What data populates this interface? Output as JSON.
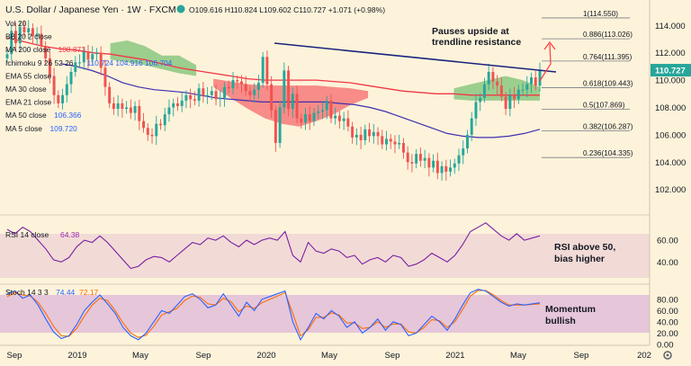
{
  "header": {
    "title": "U.S. Dollar / Japanese Yen · 1W · FXCM",
    "ohlc": "O109.616 H110.824 L109.602 C110.727 +1.071 (+0.98%)"
  },
  "legend": [
    {
      "label": "Vol 20",
      "value": "",
      "color": "#787b86"
    },
    {
      "label": "BB 20 2 close",
      "value": "",
      "color": "#787b86"
    },
    {
      "label": "MA 200 close",
      "value": "108.873",
      "color": "#f23645"
    },
    {
      "label": "Ichimoku 9 26 52 26",
      "value": "110.724 104.916 106.704",
      "color": "#2962ff"
    },
    {
      "label": "EMA 55 close",
      "value": "",
      "color": "#787b86"
    },
    {
      "label": "MA 30 close",
      "value": "",
      "color": "#787b86"
    },
    {
      "label": "EMA 21 close",
      "value": "",
      "color": "#787b86"
    },
    {
      "label": "MA 50 close",
      "value": "106.366",
      "color": "#2962ff"
    },
    {
      "label": "MA 5 close",
      "value": "109.720",
      "color": "#2962ff"
    }
  ],
  "annotations": {
    "trendline_note": [
      "Pauses upside at",
      "trendline resistance"
    ],
    "rsi_note": [
      "RSI above 50,",
      "bias higher"
    ],
    "stoch_note": [
      "Momentum",
      "bullish"
    ]
  },
  "fib_levels": [
    {
      "label": "1(114.550)",
      "value": 114.55
    },
    {
      "label": "0.886(113.026)",
      "value": 113.026
    },
    {
      "label": "0.764(111.395)",
      "value": 111.395
    },
    {
      "label": "0.618(109.443)",
      "value": 109.443
    },
    {
      "label": "0.5(107.869)",
      "value": 107.869
    },
    {
      "label": "0.382(106.287)",
      "value": 106.287
    },
    {
      "label": "0.236(104.335)",
      "value": 104.335
    }
  ],
  "price_badge": {
    "value": "110.727",
    "color": "#26a69a"
  },
  "panels": {
    "rsi": {
      "label": "RSI 14 close",
      "value": "64.38",
      "color": "#9c27b0"
    },
    "stoch": {
      "label": "Stoch 14 3 3",
      "k": "74.44",
      "d": "72.17",
      "k_color": "#2962ff",
      "d_color": "#ff6d00"
    }
  },
  "chart_data": {
    "type": "line",
    "title": "U.S. Dollar / Japanese Yen · 1W · FXCM",
    "x_labels": [
      "Sep",
      "2019",
      "May",
      "Sep",
      "2020",
      "May",
      "Sep",
      "2021",
      "May",
      "Sep",
      "202"
    ],
    "price_axis": [
      102.0,
      104.0,
      106.0,
      108.0,
      110.0,
      112.0,
      114.0
    ],
    "price_range": [
      100.2,
      115.6
    ],
    "rsi_axis": [
      40.0,
      60.0
    ],
    "rsi_range": [
      22,
      80
    ],
    "stoch_axis": [
      0.0,
      20.0,
      40.0,
      60.0,
      80.0
    ],
    "stoch_range": [
      -2,
      104
    ],
    "last_price": 110.727,
    "resistance_trendline": {
      "from": [
        "Jan 2020",
        112.3
      ],
      "to": [
        "Sep 2021",
        110.6
      ]
    },
    "price_close": [
      111.9,
      113.6,
      112.7,
      113.9,
      113.5,
      113.8,
      113.2,
      113.4,
      112.5,
      111.6,
      110.3,
      108.9,
      108.3,
      108.9,
      109.7,
      110.6,
      111.3,
      111.3,
      112.1,
      111.5,
      111.9,
      112.0,
      110.9,
      109.5,
      108.3,
      107.9,
      108.3,
      107.9,
      108.0,
      107.6,
      108.1,
      107.0,
      106.5,
      106.0,
      105.9,
      106.8,
      106.7,
      107.5,
      108.0,
      108.3,
      108.1,
      108.5,
      108.9,
      108.6,
      108.5,
      109.4,
      108.9,
      108.9,
      109.2,
      108.6,
      108.7,
      109.5,
      109.4,
      110.0,
      109.9,
      109.7,
      109.2,
      108.9,
      109.3,
      109.8,
      111.7,
      109.7,
      107.8,
      105.4,
      108.0,
      110.7,
      107.9,
      109.0,
      107.2,
      106.9,
      107.5,
      107.0,
      107.6,
      107.7,
      107.8,
      108.5,
      107.2,
      107.4,
      107.0,
      107.2,
      106.6,
      105.8,
      106.0,
      105.6,
      106.4,
      105.9,
      106.2,
      105.9,
      105.3,
      105.7,
      105.5,
      105.3,
      105.4,
      104.7,
      104.0,
      103.9,
      104.6,
      104.1,
      104.3,
      103.6,
      104.1,
      103.2,
      103.7,
      103.3,
      103.6,
      103.9,
      104.5,
      105.0,
      106.0,
      107.2,
      108.4,
      108.7,
      109.7,
      110.6,
      109.9,
      109.6,
      108.8,
      107.9,
      108.9,
      108.6,
      109.3,
      109.3,
      109.7,
      110.2,
      109.6,
      110.7
    ],
    "ma200": [
      113.1,
      112.8,
      112.5,
      112.3,
      112.2,
      112.0,
      111.9,
      111.7,
      111.5,
      111.2,
      110.9,
      110.7,
      110.5,
      110.3,
      110.1,
      110.0,
      110.0,
      110.0,
      110.0,
      109.9,
      109.8,
      109.6,
      109.4,
      109.2,
      109.1,
      109.0,
      109.0,
      108.9,
      108.9,
      108.9,
      108.9,
      108.9
    ],
    "ma50": [
      111.2,
      111.0,
      110.7,
      110.3,
      109.8,
      109.5,
      109.3,
      109.2,
      109.1,
      108.9,
      108.7,
      108.6,
      108.5,
      108.4,
      108.4,
      108.4,
      108.4,
      108.4,
      108.3,
      108.2,
      108.0,
      107.7,
      107.3,
      106.9,
      106.5,
      106.1,
      105.9,
      105.8,
      105.8,
      105.9,
      106.1,
      106.4
    ],
    "rsi": [
      70,
      66,
      72,
      68,
      60,
      52,
      42,
      40,
      44,
      54,
      60,
      58,
      64,
      58,
      50,
      42,
      34,
      36,
      42,
      45,
      44,
      40,
      46,
      52,
      58,
      56,
      62,
      60,
      64,
      58,
      54,
      60,
      56,
      60,
      62,
      60,
      68,
      46,
      40,
      58,
      50,
      48,
      52,
      50,
      44,
      46,
      38,
      42,
      44,
      40,
      46,
      44,
      36,
      38,
      42,
      48,
      44,
      40,
      46,
      56,
      68,
      72,
      76,
      70,
      64,
      60,
      66,
      60,
      62,
      64
    ],
    "stoch_k": [
      90,
      95,
      82,
      88,
      70,
      45,
      22,
      10,
      15,
      35,
      60,
      75,
      88,
      72,
      55,
      30,
      15,
      8,
      20,
      40,
      60,
      55,
      70,
      85,
      90,
      80,
      65,
      70,
      90,
      70,
      50,
      75,
      60,
      80,
      85,
      90,
      95,
      40,
      8,
      30,
      55,
      45,
      60,
      50,
      30,
      40,
      20,
      30,
      45,
      25,
      40,
      35,
      15,
      20,
      35,
      50,
      40,
      25,
      45,
      70,
      92,
      98,
      95,
      85,
      75,
      68,
      72,
      70,
      72,
      74
    ],
    "stoch_d": [
      85,
      92,
      88,
      86,
      75,
      55,
      32,
      15,
      14,
      28,
      50,
      70,
      82,
      78,
      60,
      38,
      20,
      12,
      16,
      32,
      52,
      58,
      64,
      78,
      86,
      84,
      72,
      70,
      82,
      76,
      58,
      68,
      64,
      74,
      80,
      86,
      92,
      55,
      15,
      26,
      48,
      48,
      56,
      52,
      38,
      38,
      28,
      30,
      40,
      30,
      36,
      36,
      22,
      20,
      30,
      44,
      42,
      30,
      40,
      62,
      86,
      96,
      96,
      88,
      78,
      70,
      70,
      70,
      71,
      72
    ]
  }
}
